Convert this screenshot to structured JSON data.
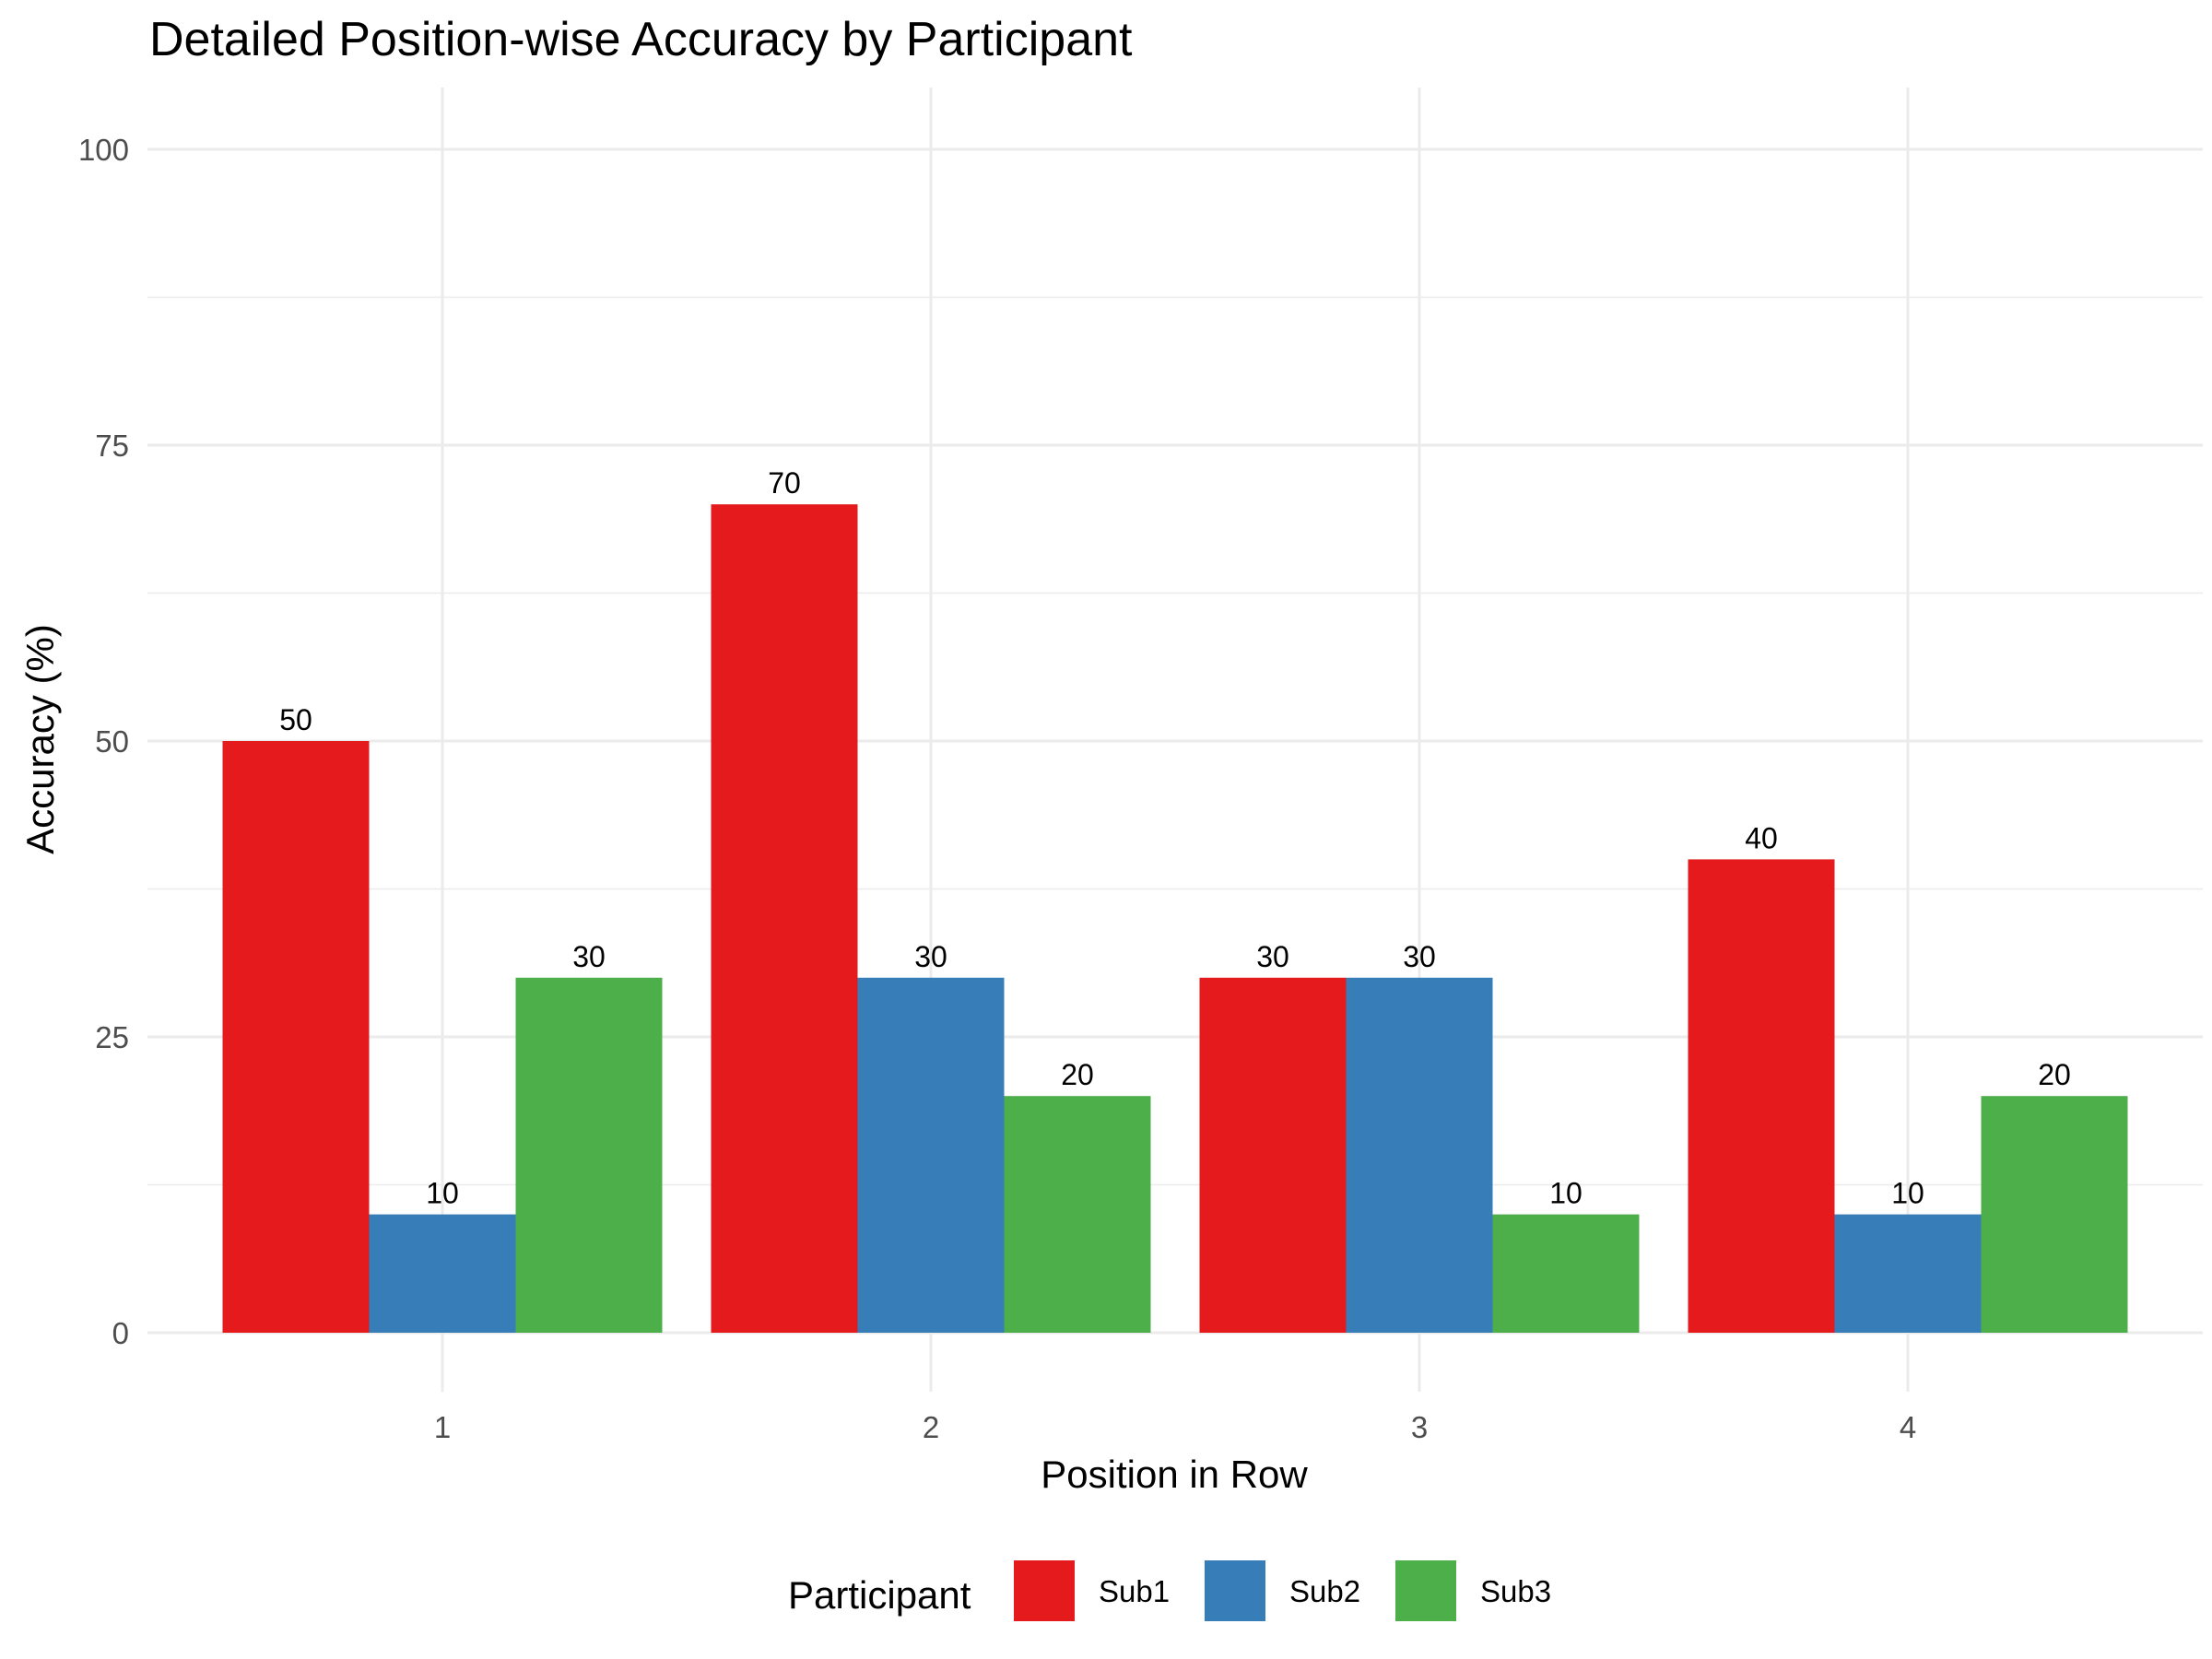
{
  "chart_data": {
    "type": "bar",
    "title": "Detailed Position-wise Accuracy by Participant",
    "xlabel": "Position in Row",
    "ylabel": "Accuracy (%)",
    "categories": [
      "1",
      "2",
      "3",
      "4"
    ],
    "series": [
      {
        "name": "Sub1",
        "color": "#e41a1c",
        "values": [
          50,
          70,
          30,
          40
        ]
      },
      {
        "name": "Sub2",
        "color": "#377eb8",
        "values": [
          10,
          30,
          30,
          10
        ]
      },
      {
        "name": "Sub3",
        "color": "#4daf4a",
        "values": [
          30,
          20,
          10,
          20
        ]
      }
    ],
    "ylim": [
      0,
      100
    ],
    "yticks": [
      0,
      25,
      50,
      75,
      100
    ],
    "yticks_minor": [
      12.5,
      37.5,
      62.5,
      87.5
    ],
    "grid": true,
    "legend": {
      "title": "Participant",
      "position": "bottom"
    }
  }
}
